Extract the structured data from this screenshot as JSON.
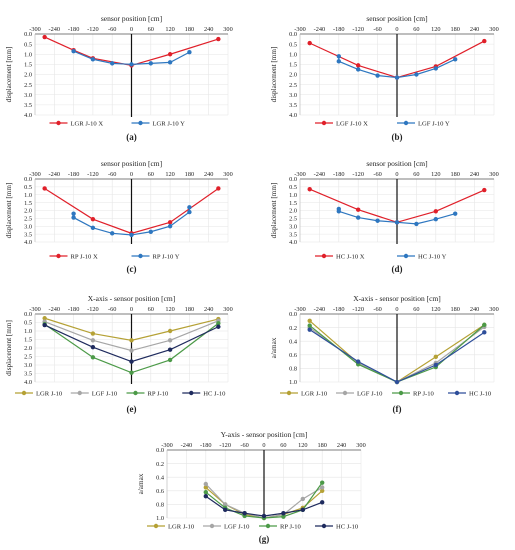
{
  "chart_data": [
    {
      "id": "a",
      "type": "line",
      "panel_label": "(a)",
      "title": "sensor position [cm]",
      "ylabel": "displacement [mm]",
      "xlim": [
        -300,
        300
      ],
      "ylim": [
        0.0,
        4.0
      ],
      "y_inverted": true,
      "x_ticks": [
        -300,
        -240,
        -180,
        -120,
        -60,
        0,
        60,
        120,
        180,
        240,
        300
      ],
      "y_ticks": [
        0.0,
        0.5,
        1.0,
        1.5,
        2.0,
        2.5,
        3.0,
        3.5,
        4.0
      ],
      "series": [
        {
          "name": "LGR J-10 X",
          "color": "#e0202a",
          "marker": "circle",
          "points": [
            [
              -270,
              0.15
            ],
            [
              -180,
              0.8
            ],
            [
              -120,
              1.2
            ],
            [
              0,
              1.55
            ],
            [
              120,
              1.0
            ],
            [
              270,
              0.25
            ]
          ]
        },
        {
          "name": "LGR J-10 Y",
          "color": "#2e77c0",
          "marker": "circle",
          "points": [
            [
              -180,
              0.85
            ],
            [
              -120,
              1.25
            ],
            [
              -60,
              1.45
            ],
            [
              0,
              1.5
            ],
            [
              60,
              1.45
            ],
            [
              120,
              1.4
            ],
            [
              180,
              0.9
            ]
          ]
        }
      ]
    },
    {
      "id": "b",
      "type": "line",
      "panel_label": "(b)",
      "title": "sensor position [cm]",
      "ylabel": "displacement [mm]",
      "xlim": [
        -300,
        300
      ],
      "ylim": [
        0.0,
        4.0
      ],
      "y_inverted": true,
      "x_ticks": [
        -300,
        -240,
        -180,
        -120,
        -60,
        0,
        60,
        120,
        180,
        240,
        300
      ],
      "y_ticks": [
        0.0,
        0.5,
        1.0,
        1.5,
        2.0,
        2.5,
        3.0,
        3.5,
        4.0
      ],
      "series": [
        {
          "name": "LGF J-10 X",
          "color": "#e0202a",
          "marker": "circle",
          "points": [
            [
              -270,
              0.45
            ],
            [
              -120,
              1.55
            ],
            [
              0,
              2.15
            ],
            [
              120,
              1.6
            ],
            [
              270,
              0.35
            ]
          ]
        },
        {
          "name": "LGF J-10 Y",
          "color": "#2e77c0",
          "marker": "circle",
          "points": [
            [
              -180,
              1.1
            ],
            [
              -180,
              1.35
            ],
            [
              -120,
              1.75
            ],
            [
              -60,
              2.05
            ],
            [
              0,
              2.15
            ],
            [
              60,
              2.0
            ],
            [
              120,
              1.7
            ],
            [
              180,
              1.25
            ]
          ]
        }
      ]
    },
    {
      "id": "c",
      "type": "line",
      "panel_label": "(c)",
      "title": "sensor position [cm]",
      "ylabel": "displacement [mm]",
      "xlim": [
        -300,
        300
      ],
      "ylim": [
        0.0,
        4.0
      ],
      "y_inverted": true,
      "x_ticks": [
        -300,
        -240,
        -180,
        -120,
        -60,
        0,
        60,
        120,
        180,
        240,
        300
      ],
      "y_ticks": [
        0.0,
        0.5,
        1.0,
        1.5,
        2.0,
        2.5,
        3.0,
        3.5,
        4.0
      ],
      "series": [
        {
          "name": "RP J-10 X",
          "color": "#e0202a",
          "marker": "circle",
          "points": [
            [
              -270,
              0.6
            ],
            [
              -120,
              2.55
            ],
            [
              0,
              3.45
            ],
            [
              120,
              2.75
            ],
            [
              270,
              0.6
            ]
          ]
        },
        {
          "name": "RP J-10 Y",
          "color": "#2e77c0",
          "marker": "circle",
          "points": [
            [
              -180,
              2.2
            ],
            [
              -180,
              2.45
            ],
            [
              -120,
              3.1
            ],
            [
              -60,
              3.45
            ],
            [
              0,
              3.55
            ],
            [
              60,
              3.35
            ],
            [
              120,
              3.0
            ],
            [
              180,
              2.1
            ],
            [
              180,
              1.8
            ]
          ]
        }
      ]
    },
    {
      "id": "d",
      "type": "line",
      "panel_label": "(d)",
      "title": "sensor position [cm]",
      "ylabel": "displacement [mm]",
      "xlim": [
        -300,
        300
      ],
      "ylim": [
        0.0,
        4.0
      ],
      "y_inverted": true,
      "x_ticks": [
        -300,
        -240,
        -180,
        -120,
        -60,
        0,
        60,
        120,
        180,
        240,
        300
      ],
      "y_ticks": [
        0.0,
        0.5,
        1.0,
        1.5,
        2.0,
        2.5,
        3.0,
        3.5,
        4.0
      ],
      "series": [
        {
          "name": "HC J-10 X",
          "color": "#e0202a",
          "marker": "circle",
          "points": [
            [
              -270,
              0.65
            ],
            [
              -120,
              1.95
            ],
            [
              0,
              2.75
            ],
            [
              120,
              2.05
            ],
            [
              270,
              0.7
            ]
          ]
        },
        {
          "name": "HC J-10 Y",
          "color": "#2e77c0",
          "marker": "circle",
          "points": [
            [
              -180,
              1.9
            ],
            [
              -180,
              2.05
            ],
            [
              -120,
              2.45
            ],
            [
              -60,
              2.65
            ],
            [
              0,
              2.75
            ],
            [
              60,
              2.85
            ],
            [
              120,
              2.55
            ],
            [
              180,
              2.2
            ]
          ]
        }
      ]
    },
    {
      "id": "e",
      "type": "line",
      "panel_label": "(e)",
      "title": "X-axis - sensor position [cm]",
      "ylabel": "displacement [mm]",
      "xlim": [
        -300,
        300
      ],
      "ylim": [
        0.0,
        4.0
      ],
      "y_inverted": true,
      "x_ticks": [
        -300,
        -240,
        -180,
        -120,
        -60,
        0,
        60,
        120,
        180,
        240,
        300
      ],
      "y_ticks": [
        0.0,
        0.5,
        1.0,
        1.5,
        2.0,
        2.5,
        3.0,
        3.5,
        4.0
      ],
      "series": [
        {
          "name": "LGR J-10",
          "color": "#b5a135",
          "marker": "circle",
          "points": [
            [
              -270,
              0.25
            ],
            [
              -120,
              1.15
            ],
            [
              0,
              1.55
            ],
            [
              120,
              1.0
            ],
            [
              270,
              0.3
            ]
          ]
        },
        {
          "name": "LGF J-10",
          "color": "#a6a6a6",
          "marker": "circle",
          "points": [
            [
              -270,
              0.45
            ],
            [
              -120,
              1.55
            ],
            [
              0,
              2.15
            ],
            [
              120,
              1.55
            ],
            [
              270,
              0.4
            ]
          ]
        },
        {
          "name": "RP J-10",
          "color": "#4c9a48",
          "marker": "circle",
          "points": [
            [
              -270,
              0.6
            ],
            [
              -120,
              2.55
            ],
            [
              0,
              3.45
            ],
            [
              120,
              2.7
            ],
            [
              270,
              0.55
            ]
          ]
        },
        {
          "name": "HC J-10",
          "color": "#1f2b5e",
          "marker": "circle",
          "points": [
            [
              -270,
              0.65
            ],
            [
              -120,
              1.95
            ],
            [
              0,
              2.8
            ],
            [
              120,
              2.1
            ],
            [
              270,
              0.75
            ]
          ]
        }
      ]
    },
    {
      "id": "f",
      "type": "line",
      "panel_label": "(f)",
      "title": "X-axis - sensor position [cm]",
      "ylabel": "a/amax",
      "xlim": [
        -300,
        300
      ],
      "ylim": [
        0.0,
        1.0
      ],
      "y_inverted": true,
      "x_ticks": [
        -300,
        -240,
        -180,
        -120,
        -60,
        0,
        60,
        120,
        180,
        240,
        300
      ],
      "y_ticks": [
        0.0,
        0.2,
        0.4,
        0.6,
        0.8,
        1.0
      ],
      "series": [
        {
          "name": "LGR J-10",
          "color": "#b5a135",
          "marker": "circle",
          "points": [
            [
              -270,
              0.1
            ],
            [
              -120,
              0.72
            ],
            [
              0,
              1.0
            ],
            [
              120,
              0.63
            ],
            [
              270,
              0.16
            ]
          ]
        },
        {
          "name": "LGF J-10",
          "color": "#a6a6a6",
          "marker": "circle",
          "points": [
            [
              -270,
              0.2
            ],
            [
              -120,
              0.72
            ],
            [
              0,
              1.0
            ],
            [
              120,
              0.72
            ],
            [
              270,
              0.19
            ]
          ]
        },
        {
          "name": "RP J-10",
          "color": "#4c9a48",
          "marker": "circle",
          "points": [
            [
              -270,
              0.17
            ],
            [
              -120,
              0.74
            ],
            [
              0,
              1.0
            ],
            [
              120,
              0.78
            ],
            [
              270,
              0.16
            ]
          ]
        },
        {
          "name": "HC J-10",
          "color": "#2e4e9a",
          "marker": "circle",
          "points": [
            [
              -270,
              0.23
            ],
            [
              -120,
              0.7
            ],
            [
              0,
              1.0
            ],
            [
              120,
              0.75
            ],
            [
              270,
              0.27
            ]
          ]
        }
      ]
    },
    {
      "id": "g",
      "type": "line",
      "panel_label": "(g)",
      "title": "Y-axis - sensor position [cm]",
      "ylabel": "a/amax",
      "xlim": [
        -300,
        300
      ],
      "ylim": [
        0.0,
        1.0
      ],
      "y_inverted": true,
      "x_ticks": [
        -300,
        -240,
        -180,
        -120,
        -60,
        0,
        60,
        120,
        180,
        240,
        300
      ],
      "y_ticks": [
        0.0,
        0.2,
        0.4,
        0.6,
        0.8,
        1.0
      ],
      "series": [
        {
          "name": "LGR J-10",
          "color": "#b5a135",
          "marker": "circle",
          "points": [
            [
              -180,
              0.55
            ],
            [
              -120,
              0.8
            ],
            [
              -60,
              0.95
            ],
            [
              0,
              1.0
            ],
            [
              60,
              0.95
            ],
            [
              120,
              0.85
            ],
            [
              180,
              0.6
            ]
          ]
        },
        {
          "name": "LGF J-10",
          "color": "#a6a6a6",
          "marker": "circle",
          "points": [
            [
              -180,
              0.5
            ],
            [
              -120,
              0.8
            ],
            [
              -60,
              0.93
            ],
            [
              0,
              1.0
            ],
            [
              60,
              0.95
            ],
            [
              120,
              0.72
            ],
            [
              180,
              0.55
            ]
          ]
        },
        {
          "name": "RP J-10",
          "color": "#4c9a48",
          "marker": "circle",
          "points": [
            [
              -180,
              0.62
            ],
            [
              -120,
              0.85
            ],
            [
              -60,
              0.97
            ],
            [
              0,
              1.0
            ],
            [
              60,
              0.98
            ],
            [
              120,
              0.88
            ],
            [
              180,
              0.48
            ]
          ]
        },
        {
          "name": "HC J-10",
          "color": "#1f2b5e",
          "marker": "circle",
          "points": [
            [
              -180,
              0.68
            ],
            [
              -120,
              0.88
            ],
            [
              -60,
              0.93
            ],
            [
              0,
              0.97
            ],
            [
              60,
              0.93
            ],
            [
              120,
              0.88
            ],
            [
              180,
              0.77
            ]
          ]
        }
      ]
    }
  ]
}
